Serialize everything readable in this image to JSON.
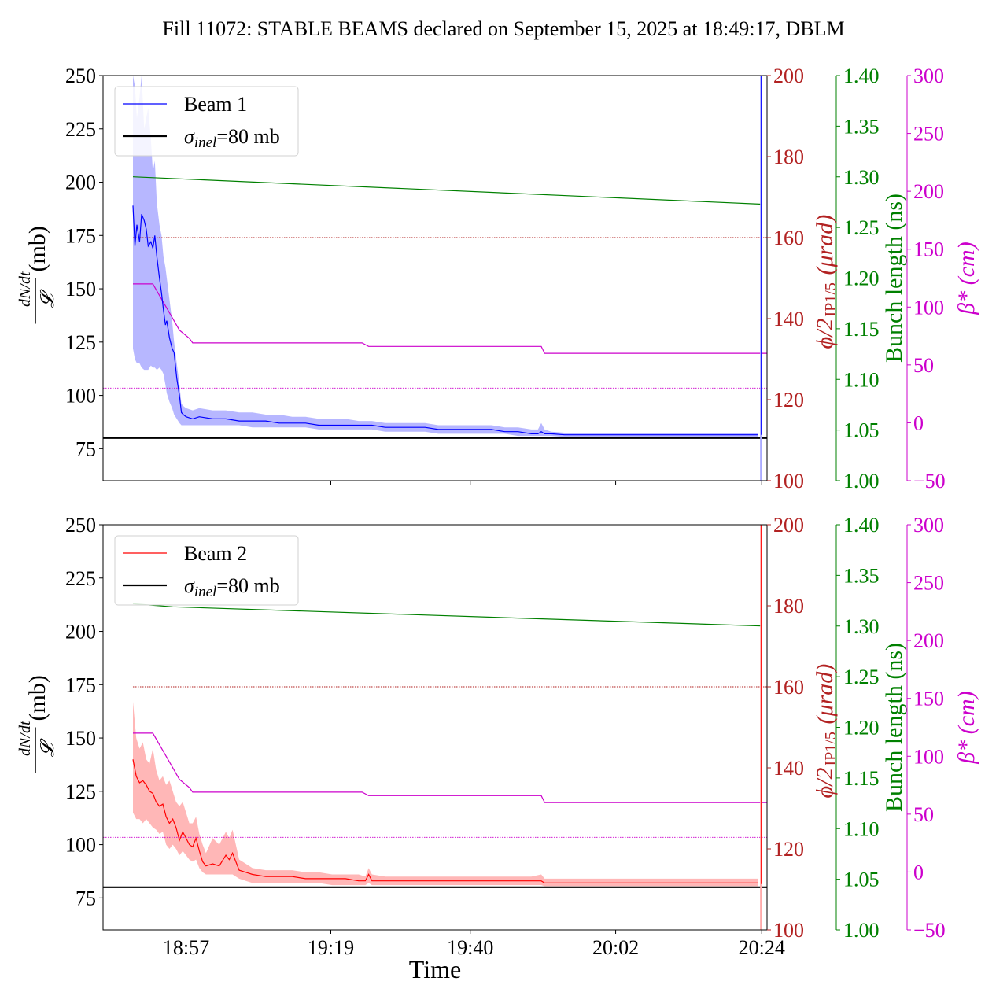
{
  "figure": {
    "title": "Fill 11072: STABLE BEAMS declared on September 15, 2025 at 18:49:17, DBLM",
    "xlabel": "Time"
  },
  "chart_data": {
    "type": "line",
    "x_unit": "minutes after 18:49:17",
    "x_ticks": [
      {
        "label": "18:57",
        "t": 8
      },
      {
        "label": "19:19",
        "t": 29.8
      },
      {
        "label": "19:40",
        "t": 50.8
      },
      {
        "label": "20:02",
        "t": 72.7
      },
      {
        "label": "20:24",
        "t": 94.7
      }
    ],
    "xlim": [
      -4.5,
      95.5
    ],
    "axes_labels": {
      "left": "dN/dt / 𝓛 (mb)",
      "right_red": "ϕ/2 IP1/5 (μrad)",
      "right_green": "Bunch length (ns)",
      "right_magenta": "β* (cm)"
    },
    "colors": {
      "beam1": "#0000ff",
      "beam1_band": "#aaaaff",
      "beam2": "#ff0000",
      "beam2_band": "#ffaaaa",
      "crossing_angle": "#b22222",
      "bunch_length": "#008000",
      "beta_star": "#cc00cc",
      "reference": "#000000"
    },
    "panels": [
      {
        "legend": [
          {
            "label": "Beam 1",
            "color": "#0000ff"
          },
          {
            "label": "σinel=80 mb",
            "color": "#000000"
          }
        ],
        "ylim_left": [
          60,
          250
        ],
        "yticks_left": [
          "75",
          "100",
          "125",
          "150",
          "175",
          "200",
          "225",
          "250"
        ],
        "ylim_red": [
          100,
          200
        ],
        "yticks_red": [
          "100",
          "120",
          "140",
          "160",
          "180",
          "200"
        ],
        "ylim_green": [
          1.0,
          1.4
        ],
        "yticks_green": [
          "1.00",
          "1.05",
          "1.10",
          "1.15",
          "1.20",
          "1.25",
          "1.30",
          "1.35",
          "1.40"
        ],
        "ylim_magenta": [
          -50,
          300
        ],
        "yticks_magenta": [
          "−50",
          "0",
          "50",
          "100",
          "150",
          "200",
          "250",
          "300"
        ],
        "sigma_inel": 80,
        "crossing_angle": [
          {
            "t": 0,
            "v": 160
          },
          {
            "t": 94.7,
            "v": 160
          }
        ],
        "bunch_length": [
          {
            "t": 0,
            "v": 1.3
          },
          {
            "t": 94.7,
            "v": 1.273
          }
        ],
        "beta_star": [
          {
            "t": 0,
            "v": 120
          },
          {
            "t": 3,
            "v": 120
          },
          {
            "t": 4,
            "v": 110
          },
          {
            "t": 5.5,
            "v": 95
          },
          {
            "t": 7,
            "v": 80
          },
          {
            "t": 8.5,
            "v": 73
          },
          {
            "t": 9,
            "v": 69
          },
          {
            "t": 34.5,
            "v": 69
          },
          {
            "t": 35.5,
            "v": 66
          },
          {
            "t": 61.5,
            "v": 66
          },
          {
            "t": 62,
            "v": 60
          },
          {
            "t": 99,
            "v": 60
          }
        ],
        "beta_star_dotted": 30,
        "series": [
          {
            "name": "Beam 1",
            "x": [
              0,
              0.3,
              0.6,
              1,
              1.3,
              1.7,
              2,
              2.3,
              2.7,
              3,
              3.3,
              3.6,
              4,
              4.3,
              4.6,
              4.9,
              5.1,
              5.5,
              5.9,
              6.2,
              6.6,
              7,
              7.3,
              7.6,
              8,
              9,
              10,
              12,
              14,
              16,
              18,
              20,
              22,
              24,
              26,
              28,
              30,
              32,
              34,
              36,
              38,
              40,
              42,
              44,
              46,
              48,
              50,
              52,
              54,
              56,
              58,
              60,
              61,
              61.5,
              62,
              63,
              65,
              70,
              75,
              80,
              85,
              90,
              94.2
            ],
            "y": [
              189,
              170,
              180,
              172,
              185,
              182,
              178,
              170,
              172,
              169,
              175,
              165,
              155,
              148,
              140,
              133,
              135,
              127,
              122,
              120,
              108,
              100,
              92,
              91,
              90,
              89,
              90,
              89,
              89,
              88,
              88,
              88,
              87,
              87,
              87,
              86,
              86,
              86,
              86,
              86,
              85,
              85,
              85,
              85,
              84,
              84,
              84,
              84,
              84,
              83,
              83,
              82,
              82,
              83,
              82,
              82,
              81.5,
              81.5,
              81.5,
              81.5,
              81.5,
              81.5,
              81.5
            ],
            "y_low": [
              122,
              117,
              115,
              115,
              113,
              112,
              112,
              112,
              114,
              113,
              113,
              112,
              113,
              112,
              110,
              105,
              101,
              97,
              94,
              91,
              89,
              87,
              86,
              86,
              86,
              86,
              86,
              86,
              86,
              86,
              85,
              85,
              85,
              85,
              85,
              84,
              84,
              84,
              84,
              84,
              83,
              83,
              83,
              83,
              82,
              82,
              82,
              82,
              82,
              82,
              81,
              81,
              81,
              81,
              81,
              81,
              80.5,
              80.5,
              80.5,
              80.5,
              80.5,
              80.5,
              80.5
            ],
            "y_high": [
              250,
              245,
              230,
              240,
              250,
              225,
              230,
              235,
              220,
              205,
              210,
              190,
              180,
              175,
              165,
              160,
              155,
              145,
              135,
              125,
              115,
              105,
              96,
              95,
              94,
              93,
              94,
              93,
              93,
              92,
              92,
              91,
              91,
              90,
              90,
              89,
              89,
              89,
              88,
              88,
              87,
              87,
              87,
              87,
              86,
              86,
              86,
              86,
              86,
              85,
              85,
              84,
              84,
              87,
              84,
              83,
              82.5,
              82.5,
              82.5,
              82.5,
              82.5,
              82.5,
              82.5
            ],
            "end_spike": {
              "t": 94.6,
              "from": 60,
              "to": 250
            }
          }
        ]
      },
      {
        "legend": [
          {
            "label": "Beam 2",
            "color": "#ff0000"
          },
          {
            "label": "σinel=80 mb",
            "color": "#000000"
          }
        ],
        "ylim_left": [
          60,
          250
        ],
        "yticks_left": [
          "75",
          "100",
          "125",
          "150",
          "175",
          "200",
          "225",
          "250"
        ],
        "ylim_red": [
          100,
          200
        ],
        "yticks_red": [
          "100",
          "120",
          "140",
          "160",
          "180",
          "200"
        ],
        "ylim_green": [
          1.0,
          1.4
        ],
        "yticks_green": [
          "1.00",
          "1.05",
          "1.10",
          "1.15",
          "1.20",
          "1.25",
          "1.30",
          "1.35",
          "1.40"
        ],
        "ylim_magenta": [
          -50,
          300
        ],
        "yticks_magenta": [
          "−50",
          "0",
          "50",
          "100",
          "150",
          "200",
          "250",
          "300"
        ],
        "sigma_inel": 80,
        "crossing_angle": [
          {
            "t": 0,
            "v": 160
          },
          {
            "t": 94.7,
            "v": 160
          }
        ],
        "bunch_length": [
          {
            "t": 0,
            "v": 1.322
          },
          {
            "t": 6,
            "v": 1.319
          },
          {
            "t": 94.7,
            "v": 1.3
          }
        ],
        "beta_star": [
          {
            "t": 0,
            "v": 120
          },
          {
            "t": 3,
            "v": 120
          },
          {
            "t": 4,
            "v": 110
          },
          {
            "t": 5.5,
            "v": 95
          },
          {
            "t": 7,
            "v": 80
          },
          {
            "t": 8.5,
            "v": 73
          },
          {
            "t": 9,
            "v": 69
          },
          {
            "t": 34.5,
            "v": 69
          },
          {
            "t": 35.5,
            "v": 66
          },
          {
            "t": 61.5,
            "v": 66
          },
          {
            "t": 62,
            "v": 60
          },
          {
            "t": 99,
            "v": 60
          }
        ],
        "beta_star_dotted": 30,
        "series": [
          {
            "name": "Beam 2",
            "x": [
              0,
              0.5,
              1,
              1.5,
              2,
              2.5,
              3,
              3.5,
              4,
              4.5,
              5,
              5.5,
              6,
              6.5,
              7,
              7.5,
              8,
              8.5,
              9,
              9.5,
              10,
              10.5,
              11,
              12,
              13,
              14,
              14.5,
              15,
              15.5,
              16,
              17,
              18,
              20,
              22,
              24,
              26,
              28,
              30,
              32,
              34,
              35,
              35.5,
              36,
              38,
              40,
              45,
              50,
              55,
              60,
              61.5,
              62,
              65,
              70,
              75,
              80,
              85,
              90,
              94.2
            ],
            "y": [
              140,
              132,
              129,
              130,
              128,
              125,
              124,
              120,
              118,
              119,
              113,
              110,
              112,
              108,
              102,
              106,
              103,
              100,
              99,
              103,
              97,
              92,
              90,
              91,
              90,
              95,
              93,
              96,
              92,
              88,
              87,
              86,
              85,
              85,
              85,
              84,
              84,
              84,
              84,
              83,
              83,
              86,
              83,
              83,
              83,
              83,
              83,
              83,
              83,
              83,
              82,
              82,
              82,
              82,
              82,
              82,
              82,
              82
            ],
            "y_low": [
              115,
              112,
              112,
              110,
              112,
              110,
              108,
              107,
              105,
              106,
              100,
              98,
              100,
              98,
              95,
              97,
              95,
              93,
              92,
              93,
              89,
              87,
              86,
              86,
              86,
              86,
              86,
              86,
              85,
              84,
              83,
              82,
              82,
              82,
              82,
              82,
              82,
              81,
              81,
              81,
              81,
              82,
              81,
              81,
              81,
              81,
              81,
              81,
              81,
              81,
              80.5,
              80.5,
              80.5,
              80.5,
              80.5,
              80.5,
              80.5,
              80.5
            ],
            "y_high": [
              167,
              150,
              145,
              148,
              140,
              138,
              145,
              135,
              130,
              132,
              128,
              130,
              125,
              120,
              118,
              120,
              115,
              110,
              110,
              113,
              105,
              100,
              96,
              103,
              100,
              106,
              103,
              107,
              100,
              93,
              91,
              89,
              88,
              88,
              88,
              87,
              87,
              86,
              86,
              86,
              85,
              89,
              86,
              85,
              85,
              85,
              85,
              85,
              85,
              86,
              84,
              84,
              84,
              84,
              84,
              84,
              84,
              84
            ],
            "end_spike": {
              "t": 94.6,
              "from": 60,
              "to": 250
            }
          }
        ]
      }
    ]
  }
}
